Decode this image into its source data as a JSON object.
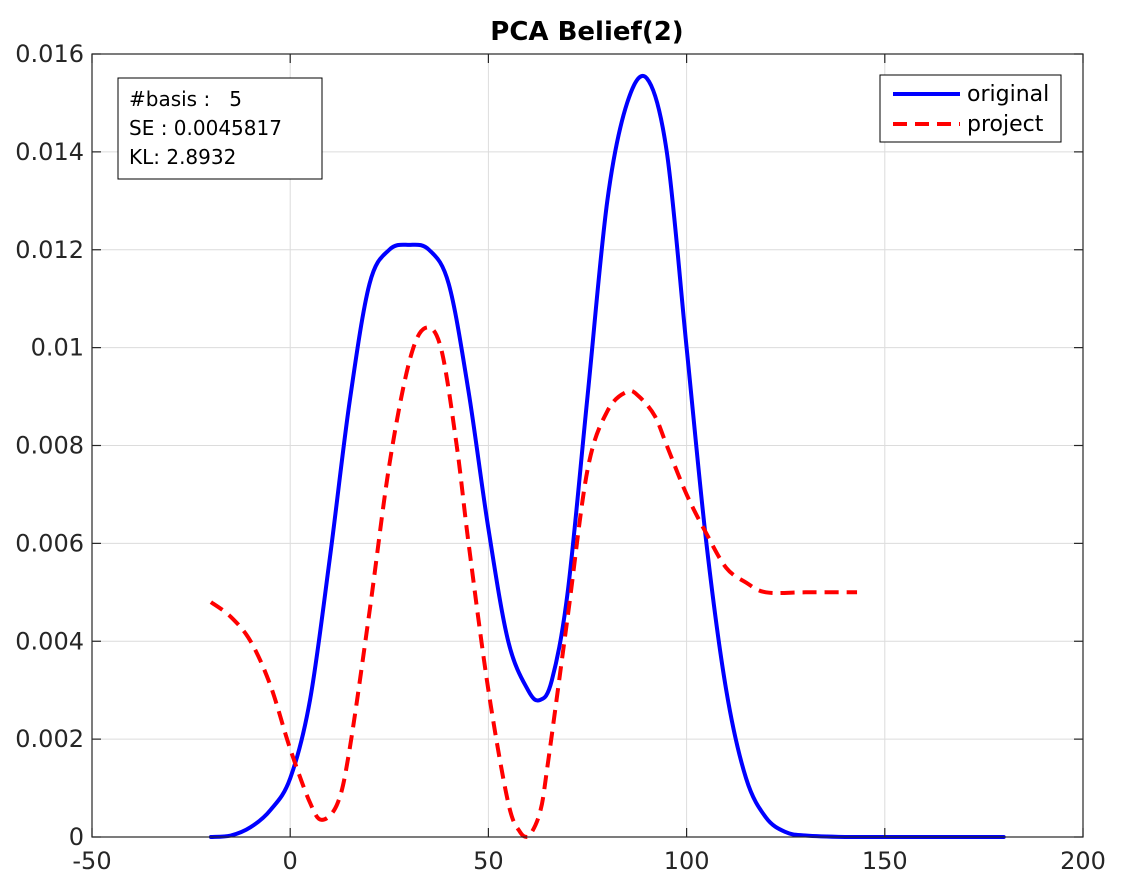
{
  "chart_data": {
    "type": "line",
    "title": "PCA Belief(2)",
    "xlabel": "",
    "ylabel": "",
    "xlim": [
      -50,
      200
    ],
    "ylim": [
      0,
      0.016
    ],
    "grid": true,
    "legend_position": "top-right",
    "x_ticks": [
      -50,
      0,
      50,
      100,
      150,
      200
    ],
    "x_tick_labels": [
      "-50",
      "0",
      "50",
      "100",
      "150",
      "200"
    ],
    "y_ticks": [
      0,
      0.002,
      0.004,
      0.006,
      0.008,
      0.01,
      0.012,
      0.014,
      0.016
    ],
    "y_tick_labels": [
      "0",
      "0.002",
      "0.004",
      "0.006",
      "0.008",
      "0.01",
      "0.012",
      "0.014",
      "0.016"
    ],
    "annotation": {
      "lines": [
        "#basis :   5",
        "SE : 0.0045817",
        "KL: 2.8932"
      ]
    },
    "series": [
      {
        "name": "original",
        "color": "#0000ff",
        "style": "solid",
        "x": [
          -20,
          -15,
          -10,
          -5,
          0,
          5,
          10,
          15,
          20,
          25,
          30,
          35,
          40,
          45,
          50,
          55,
          60,
          63,
          66,
          70,
          75,
          80,
          85,
          90,
          95,
          100,
          105,
          110,
          115,
          120,
          125,
          130,
          140,
          150,
          160,
          170,
          180
        ],
        "y": [
          0.0,
          3e-05,
          0.0002,
          0.00055,
          0.0012,
          0.0028,
          0.0057,
          0.0089,
          0.0113,
          0.012,
          0.0121,
          0.012,
          0.0113,
          0.0091,
          0.0063,
          0.004,
          0.003,
          0.0028,
          0.0032,
          0.005,
          0.009,
          0.013,
          0.015,
          0.0155,
          0.014,
          0.01,
          0.006,
          0.003,
          0.0012,
          0.0004,
          0.0001,
          3e-05,
          0.0,
          0.0,
          0.0,
          0.0,
          0.0
        ]
      },
      {
        "name": "project",
        "color": "#ff0000",
        "style": "dashed",
        "x": [
          -20,
          -15,
          -10,
          -5,
          0,
          5,
          8,
          12,
          15,
          20,
          25,
          30,
          34,
          38,
          42,
          45,
          50,
          55,
          58,
          60,
          63,
          65,
          70,
          75,
          80,
          85,
          88,
          92,
          95,
          100,
          105,
          110,
          115,
          120,
          130,
          143
        ],
        "y": [
          0.0048,
          0.0045,
          0.004,
          0.0031,
          0.0018,
          0.0007,
          0.00035,
          0.0007,
          0.0018,
          0.0046,
          0.0076,
          0.0097,
          0.0104,
          0.01,
          0.008,
          0.006,
          0.003,
          0.0007,
          0.0001,
          0.0,
          0.0005,
          0.0015,
          0.0045,
          0.0075,
          0.0087,
          0.0091,
          0.009,
          0.0086,
          0.008,
          0.007,
          0.0062,
          0.0055,
          0.0052,
          0.005,
          0.005,
          0.005
        ]
      }
    ]
  }
}
